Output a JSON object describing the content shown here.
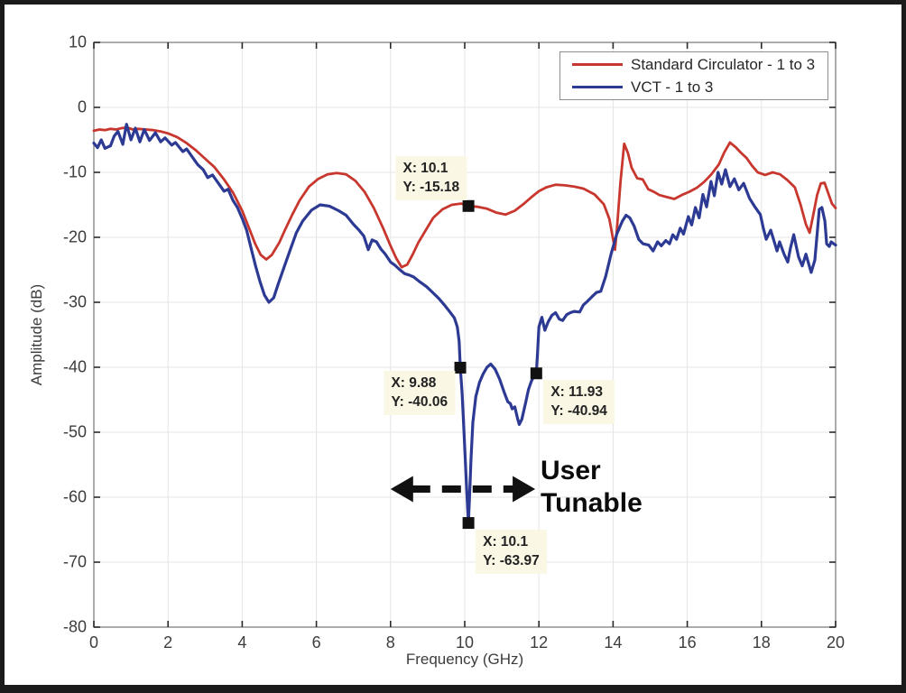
{
  "chart_data": {
    "type": "line",
    "title": "",
    "xlabel": "Frequency (GHz)",
    "ylabel": "Amplitude (dB)",
    "xlim": [
      0,
      20
    ],
    "ylim": [
      -80,
      10
    ],
    "xticks": [
      0,
      2,
      4,
      6,
      8,
      10,
      12,
      14,
      16,
      18,
      20
    ],
    "yticks": [
      10,
      0,
      -10,
      -20,
      -30,
      -40,
      -50,
      -60,
      -70,
      -80
    ],
    "grid": true,
    "legend_position": "top-right",
    "colors": {
      "grid": "#e4e4e4",
      "axis_box": "#909090",
      "tick": "#2a2a2a",
      "marker": "#111111",
      "annotation_arrow": "#111111",
      "datatip_background": "#faf7e4",
      "series_red": "#c8372e",
      "series_blue": "#2d3a94"
    },
    "series": [
      {
        "name": "Standard Circulator - 1 to 3",
        "color": "#c8372e",
        "points": [
          [
            0,
            -3.6
          ],
          [
            0.15,
            -3.4
          ],
          [
            0.3,
            -3.5
          ],
          [
            0.45,
            -3.3
          ],
          [
            0.6,
            -3.4
          ],
          [
            0.75,
            -3.2
          ],
          [
            0.9,
            -3.1
          ],
          [
            1.05,
            -3.4
          ],
          [
            1.2,
            -3.3
          ],
          [
            1.4,
            -3.4
          ],
          [
            1.6,
            -3.5
          ],
          [
            1.8,
            -3.7
          ],
          [
            2.0,
            -4.0
          ],
          [
            2.25,
            -4.6
          ],
          [
            2.5,
            -5.5
          ],
          [
            2.75,
            -6.6
          ],
          [
            3.0,
            -7.9
          ],
          [
            3.25,
            -9.2
          ],
          [
            3.5,
            -11.0
          ],
          [
            3.75,
            -13.1
          ],
          [
            4.0,
            -15.9
          ],
          [
            4.2,
            -18.8
          ],
          [
            4.35,
            -21.0
          ],
          [
            4.5,
            -22.7
          ],
          [
            4.65,
            -23.4
          ],
          [
            4.8,
            -22.7
          ],
          [
            5.0,
            -20.8
          ],
          [
            5.15,
            -18.9
          ],
          [
            5.35,
            -16.5
          ],
          [
            5.55,
            -14.3
          ],
          [
            5.8,
            -12.2
          ],
          [
            6.05,
            -11.0
          ],
          [
            6.3,
            -10.3
          ],
          [
            6.55,
            -10.1
          ],
          [
            6.8,
            -10.3
          ],
          [
            7.05,
            -11.3
          ],
          [
            7.3,
            -13.0
          ],
          [
            7.55,
            -15.5
          ],
          [
            7.8,
            -18.6
          ],
          [
            8.0,
            -21.3
          ],
          [
            8.15,
            -23.2
          ],
          [
            8.3,
            -24.6
          ],
          [
            8.45,
            -24.2
          ],
          [
            8.6,
            -22.6
          ],
          [
            8.75,
            -20.8
          ],
          [
            8.95,
            -18.9
          ],
          [
            9.15,
            -17.0
          ],
          [
            9.4,
            -15.7
          ],
          [
            9.65,
            -15.0
          ],
          [
            9.9,
            -14.8
          ],
          [
            10.1,
            -15.18
          ],
          [
            10.35,
            -15.3
          ],
          [
            10.6,
            -15.6
          ],
          [
            10.85,
            -16.2
          ],
          [
            11.1,
            -16.5
          ],
          [
            11.35,
            -15.9
          ],
          [
            11.6,
            -14.8
          ],
          [
            11.8,
            -13.8
          ],
          [
            12.0,
            -12.9
          ],
          [
            12.2,
            -12.3
          ],
          [
            12.45,
            -11.9
          ],
          [
            12.7,
            -12.0
          ],
          [
            12.95,
            -12.2
          ],
          [
            13.2,
            -12.5
          ],
          [
            13.5,
            -13.4
          ],
          [
            13.75,
            -14.9
          ],
          [
            13.9,
            -17.2
          ],
          [
            14.0,
            -20.3
          ],
          [
            14.05,
            -21.9
          ],
          [
            14.1,
            -19.0
          ],
          [
            14.2,
            -11.5
          ],
          [
            14.3,
            -5.6
          ],
          [
            14.4,
            -7.0
          ],
          [
            14.5,
            -9.3
          ],
          [
            14.65,
            -10.9
          ],
          [
            14.8,
            -11.1
          ],
          [
            14.95,
            -12.6
          ],
          [
            15.1,
            -13.0
          ],
          [
            15.25,
            -13.5
          ],
          [
            15.45,
            -13.8
          ],
          [
            15.65,
            -14.1
          ],
          [
            15.85,
            -13.5
          ],
          [
            16.05,
            -13.0
          ],
          [
            16.25,
            -12.4
          ],
          [
            16.45,
            -11.5
          ],
          [
            16.65,
            -10.3
          ],
          [
            16.85,
            -8.8
          ],
          [
            17.0,
            -6.9
          ],
          [
            17.15,
            -5.4
          ],
          [
            17.3,
            -6.1
          ],
          [
            17.45,
            -7.0
          ],
          [
            17.6,
            -7.8
          ],
          [
            17.75,
            -9.0
          ],
          [
            17.9,
            -10.0
          ],
          [
            18.1,
            -10.4
          ],
          [
            18.3,
            -10.0
          ],
          [
            18.5,
            -10.3
          ],
          [
            18.7,
            -11.2
          ],
          [
            18.9,
            -12.3
          ],
          [
            19.05,
            -14.9
          ],
          [
            19.2,
            -18.0
          ],
          [
            19.3,
            -19.3
          ],
          [
            19.4,
            -16.5
          ],
          [
            19.5,
            -13.5
          ],
          [
            19.6,
            -11.7
          ],
          [
            19.7,
            -11.6
          ],
          [
            19.8,
            -13.2
          ],
          [
            19.9,
            -14.8
          ],
          [
            20.0,
            -15.5
          ]
        ]
      },
      {
        "name": "VCT - 1 to 3",
        "color": "#2d3a94",
        "points": [
          [
            0,
            -5.5
          ],
          [
            0.1,
            -6.2
          ],
          [
            0.2,
            -5.0
          ],
          [
            0.3,
            -6.3
          ],
          [
            0.45,
            -5.9
          ],
          [
            0.55,
            -4.4
          ],
          [
            0.65,
            -3.7
          ],
          [
            0.78,
            -5.7
          ],
          [
            0.88,
            -2.6
          ],
          [
            1.0,
            -5.0
          ],
          [
            1.12,
            -3.2
          ],
          [
            1.24,
            -5.3
          ],
          [
            1.36,
            -3.4
          ],
          [
            1.5,
            -5.1
          ],
          [
            1.66,
            -3.9
          ],
          [
            1.8,
            -5.3
          ],
          [
            1.92,
            -4.7
          ],
          [
            2.1,
            -5.8
          ],
          [
            2.2,
            -5.4
          ],
          [
            2.4,
            -6.8
          ],
          [
            2.5,
            -6.4
          ],
          [
            2.65,
            -7.6
          ],
          [
            2.8,
            -8.8
          ],
          [
            2.95,
            -9.6
          ],
          [
            3.07,
            -10.8
          ],
          [
            3.2,
            -10.4
          ],
          [
            3.36,
            -11.7
          ],
          [
            3.51,
            -12.9
          ],
          [
            3.62,
            -12.6
          ],
          [
            3.75,
            -14.3
          ],
          [
            3.87,
            -15.4
          ],
          [
            4.0,
            -17.1
          ],
          [
            4.12,
            -18.9
          ],
          [
            4.24,
            -21.7
          ],
          [
            4.36,
            -24.4
          ],
          [
            4.48,
            -26.8
          ],
          [
            4.6,
            -28.9
          ],
          [
            4.72,
            -30.0
          ],
          [
            4.85,
            -29.3
          ],
          [
            4.97,
            -27.2
          ],
          [
            5.14,
            -24.4
          ],
          [
            5.31,
            -21.7
          ],
          [
            5.46,
            -19.3
          ],
          [
            5.63,
            -17.5
          ],
          [
            5.87,
            -15.8
          ],
          [
            6.1,
            -15.0
          ],
          [
            6.35,
            -15.2
          ],
          [
            6.6,
            -15.9
          ],
          [
            6.8,
            -16.6
          ],
          [
            7.0,
            -18.0
          ],
          [
            7.15,
            -18.9
          ],
          [
            7.28,
            -19.8
          ],
          [
            7.4,
            -21.9
          ],
          [
            7.5,
            -20.4
          ],
          [
            7.62,
            -20.7
          ],
          [
            7.74,
            -21.8
          ],
          [
            7.86,
            -22.6
          ],
          [
            8.0,
            -23.8
          ],
          [
            8.12,
            -24.3
          ],
          [
            8.25,
            -25.0
          ],
          [
            8.38,
            -25.6
          ],
          [
            8.5,
            -25.8
          ],
          [
            8.62,
            -26.1
          ],
          [
            8.8,
            -26.9
          ],
          [
            8.97,
            -27.6
          ],
          [
            9.12,
            -28.4
          ],
          [
            9.3,
            -29.4
          ],
          [
            9.45,
            -30.4
          ],
          [
            9.6,
            -31.5
          ],
          [
            9.72,
            -32.4
          ],
          [
            9.8,
            -33.8
          ],
          [
            9.85,
            -36.0
          ],
          [
            9.88,
            -40.06
          ],
          [
            9.93,
            -44.0
          ],
          [
            9.98,
            -50.0
          ],
          [
            10.03,
            -56.0
          ],
          [
            10.08,
            -62.0
          ],
          [
            10.1,
            -63.97
          ],
          [
            10.13,
            -60.0
          ],
          [
            10.17,
            -54.0
          ],
          [
            10.22,
            -48.5
          ],
          [
            10.3,
            -44.5
          ],
          [
            10.4,
            -42.3
          ],
          [
            10.5,
            -41.0
          ],
          [
            10.6,
            -40.0
          ],
          [
            10.7,
            -39.5
          ],
          [
            10.82,
            -40.3
          ],
          [
            10.94,
            -41.8
          ],
          [
            11.06,
            -43.8
          ],
          [
            11.16,
            -45.3
          ],
          [
            11.23,
            -45.6
          ],
          [
            11.28,
            -46.4
          ],
          [
            11.35,
            -46.1
          ],
          [
            11.42,
            -47.8
          ],
          [
            11.47,
            -48.8
          ],
          [
            11.54,
            -48.0
          ],
          [
            11.64,
            -45.5
          ],
          [
            11.72,
            -43.4
          ],
          [
            11.8,
            -42.1
          ],
          [
            11.88,
            -41.2
          ],
          [
            11.93,
            -40.94
          ],
          [
            11.96,
            -38.0
          ],
          [
            12.0,
            -33.8
          ],
          [
            12.08,
            -32.3
          ],
          [
            12.16,
            -34.3
          ],
          [
            12.25,
            -33.0
          ],
          [
            12.35,
            -32.0
          ],
          [
            12.45,
            -31.6
          ],
          [
            12.55,
            -32.6
          ],
          [
            12.64,
            -32.8
          ],
          [
            12.75,
            -31.9
          ],
          [
            12.85,
            -31.6
          ],
          [
            12.95,
            -31.4
          ],
          [
            13.1,
            -31.5
          ],
          [
            13.2,
            -30.4
          ],
          [
            13.3,
            -29.9
          ],
          [
            13.42,
            -29.2
          ],
          [
            13.55,
            -28.5
          ],
          [
            13.67,
            -28.3
          ],
          [
            13.8,
            -26.0
          ],
          [
            13.95,
            -22.5
          ],
          [
            14.1,
            -19.5
          ],
          [
            14.25,
            -17.5
          ],
          [
            14.35,
            -16.6
          ],
          [
            14.45,
            -17.0
          ],
          [
            14.57,
            -18.3
          ],
          [
            14.69,
            -20.3
          ],
          [
            14.81,
            -21.0
          ],
          [
            14.96,
            -21.2
          ],
          [
            15.08,
            -22.1
          ],
          [
            15.2,
            -20.7
          ],
          [
            15.3,
            -21.3
          ],
          [
            15.42,
            -20.5
          ],
          [
            15.52,
            -21.0
          ],
          [
            15.61,
            -19.6
          ],
          [
            15.71,
            -20.3
          ],
          [
            15.81,
            -18.6
          ],
          [
            15.9,
            -19.5
          ],
          [
            16.03,
            -16.8
          ],
          [
            16.12,
            -18.1
          ],
          [
            16.22,
            -15.4
          ],
          [
            16.32,
            -17.0
          ],
          [
            16.42,
            -13.4
          ],
          [
            16.52,
            -15.3
          ],
          [
            16.64,
            -11.4
          ],
          [
            16.73,
            -13.6
          ],
          [
            16.83,
            -10.0
          ],
          [
            16.93,
            -11.8
          ],
          [
            17.03,
            -9.6
          ],
          [
            17.15,
            -12.2
          ],
          [
            17.27,
            -11.0
          ],
          [
            17.39,
            -12.7
          ],
          [
            17.52,
            -11.7
          ],
          [
            17.68,
            -14.0
          ],
          [
            17.81,
            -15.2
          ],
          [
            17.97,
            -16.5
          ],
          [
            18.05,
            -18.6
          ],
          [
            18.13,
            -20.3
          ],
          [
            18.25,
            -18.9
          ],
          [
            18.34,
            -20.6
          ],
          [
            18.42,
            -22.1
          ],
          [
            18.49,
            -20.7
          ],
          [
            18.61,
            -22.6
          ],
          [
            18.71,
            -23.8
          ],
          [
            18.78,
            -21.7
          ],
          [
            18.87,
            -19.6
          ],
          [
            19.0,
            -23.0
          ],
          [
            19.1,
            -24.4
          ],
          [
            19.2,
            -22.6
          ],
          [
            19.27,
            -24.0
          ],
          [
            19.34,
            -25.4
          ],
          [
            19.44,
            -23.5
          ],
          [
            19.56,
            -15.7
          ],
          [
            19.63,
            -15.4
          ],
          [
            19.71,
            -17.5
          ],
          [
            19.76,
            -21.0
          ],
          [
            19.83,
            -21.4
          ],
          [
            19.88,
            -20.7
          ],
          [
            19.95,
            -21.0
          ],
          [
            20.0,
            -21.2
          ]
        ]
      }
    ],
    "markers": [
      {
        "x": 10.1,
        "y": -15.18,
        "label_lines": [
          "X: 10.1",
          "Y: -15.18"
        ],
        "label_side": "above-left"
      },
      {
        "x": 9.88,
        "y": -40.06,
        "label_lines": [
          "X: 9.88",
          "Y: -40.06"
        ],
        "label_side": "below-left"
      },
      {
        "x": 11.93,
        "y": -40.94,
        "label_lines": [
          "X: 11.93",
          "Y: -40.94"
        ],
        "label_side": "below-right"
      },
      {
        "x": 10.1,
        "y": -63.97,
        "label_lines": [
          "X: 10.1",
          "Y: -63.97"
        ],
        "label_side": "below-right"
      }
    ],
    "annotation": {
      "lines": [
        "User",
        "Tunable"
      ],
      "arrow": {
        "ghz_from": 8.0,
        "ghz_to": 11.9,
        "db": -58.75,
        "style": "dashed-double-headed"
      }
    }
  }
}
